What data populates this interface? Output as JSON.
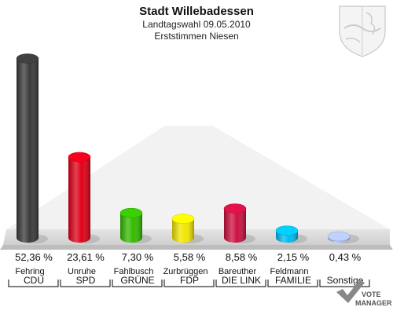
{
  "header": {
    "title": "Stadt Willebadessen",
    "subtitle": "Landtagswahl 09.05.2010",
    "subtitle2": "Erststimmen Niesen"
  },
  "branding": {
    "logo_line1": "VOTE",
    "logo_line2": "MANAGER"
  },
  "chart_data": {
    "type": "bar",
    "title": "Stadt Willebadessen",
    "subtitle": "Landtagswahl 09.05.2010 — Erststimmen Niesen",
    "categories": [
      "CDU",
      "SPD",
      "GRÜNE",
      "FDP",
      "DIE LINKE",
      "FAMILIE",
      "Sonstige"
    ],
    "candidates": [
      "Fehring",
      "Unruhe",
      "Fahlbusch",
      "Zurbrüggen",
      "Bareuther",
      "Feldmann",
      ""
    ],
    "values": [
      52.36,
      23.61,
      7.3,
      5.58,
      8.58,
      2.15,
      0.43
    ],
    "value_labels": [
      "52,36 %",
      "23,61 %",
      "7,30 %",
      "5,58 %",
      "8,58 %",
      "2,15 %",
      "0,43 %"
    ],
    "party_labels": [
      "CDU",
      "SPD",
      "GRÜNE",
      "FDP",
      "DIE LINK",
      "FAMILIE",
      "Sonstige"
    ],
    "colors": [
      "#3a3a3a",
      "#e00018",
      "#33bb00",
      "#f2e600",
      "#cc1040",
      "#00bbee",
      "#aabbee"
    ],
    "ylim": [
      0,
      55
    ],
    "grid": false,
    "legend": "none"
  }
}
